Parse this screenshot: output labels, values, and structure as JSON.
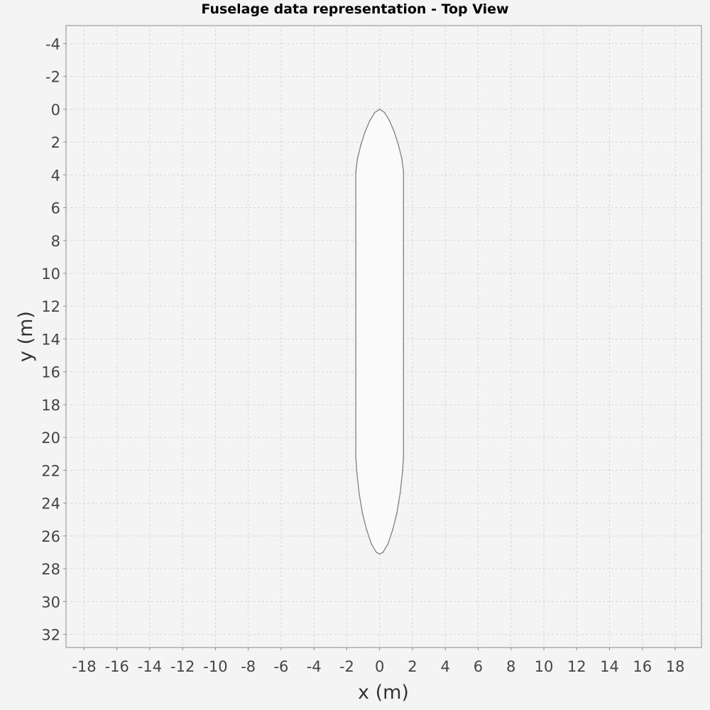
{
  "chart_data": {
    "type": "line",
    "title": "Fuselage data representation - Top View",
    "xlabel": "x (m)",
    "ylabel": "y (m)",
    "xlim": [
      -19.1,
      19.6
    ],
    "ylim": [
      -5.1,
      32.8
    ],
    "y_inverted": true,
    "grid": true,
    "x_ticks": [
      -18,
      -16,
      -14,
      -12,
      -10,
      -8,
      -6,
      -4,
      -2,
      0,
      2,
      4,
      6,
      8,
      10,
      12,
      14,
      16,
      18
    ],
    "y_ticks": [
      -4,
      -2,
      0,
      2,
      4,
      6,
      8,
      10,
      12,
      14,
      16,
      18,
      20,
      22,
      24,
      26,
      28,
      30,
      32
    ],
    "series": [
      {
        "color": "#808080",
        "fill": "#fafafa",
        "points": [
          [
            0,
            0
          ],
          [
            0.3,
            0.2
          ],
          [
            0.6,
            0.7
          ],
          [
            0.9,
            1.4
          ],
          [
            1.15,
            2.2
          ],
          [
            1.35,
            3.0
          ],
          [
            1.45,
            3.8
          ],
          [
            1.45,
            8.8
          ],
          [
            1.45,
            14.4
          ],
          [
            1.45,
            21.2
          ],
          [
            1.4,
            22.0
          ],
          [
            1.25,
            23.4
          ],
          [
            1.05,
            24.6
          ],
          [
            0.8,
            25.6
          ],
          [
            0.5,
            26.5
          ],
          [
            0.2,
            27.0
          ],
          [
            0,
            27.1
          ],
          [
            -0.2,
            27.0
          ],
          [
            -0.5,
            26.5
          ],
          [
            -0.8,
            25.6
          ],
          [
            -1.05,
            24.6
          ],
          [
            -1.25,
            23.4
          ],
          [
            -1.4,
            22.0
          ],
          [
            -1.45,
            21.2
          ],
          [
            -1.45,
            14.4
          ],
          [
            -1.45,
            8.8
          ],
          [
            -1.45,
            3.8
          ],
          [
            -1.35,
            3.0
          ],
          [
            -1.15,
            2.2
          ],
          [
            -0.9,
            1.4
          ],
          [
            -0.6,
            0.7
          ],
          [
            -0.3,
            0.2
          ],
          [
            0,
            0
          ]
        ]
      }
    ]
  }
}
